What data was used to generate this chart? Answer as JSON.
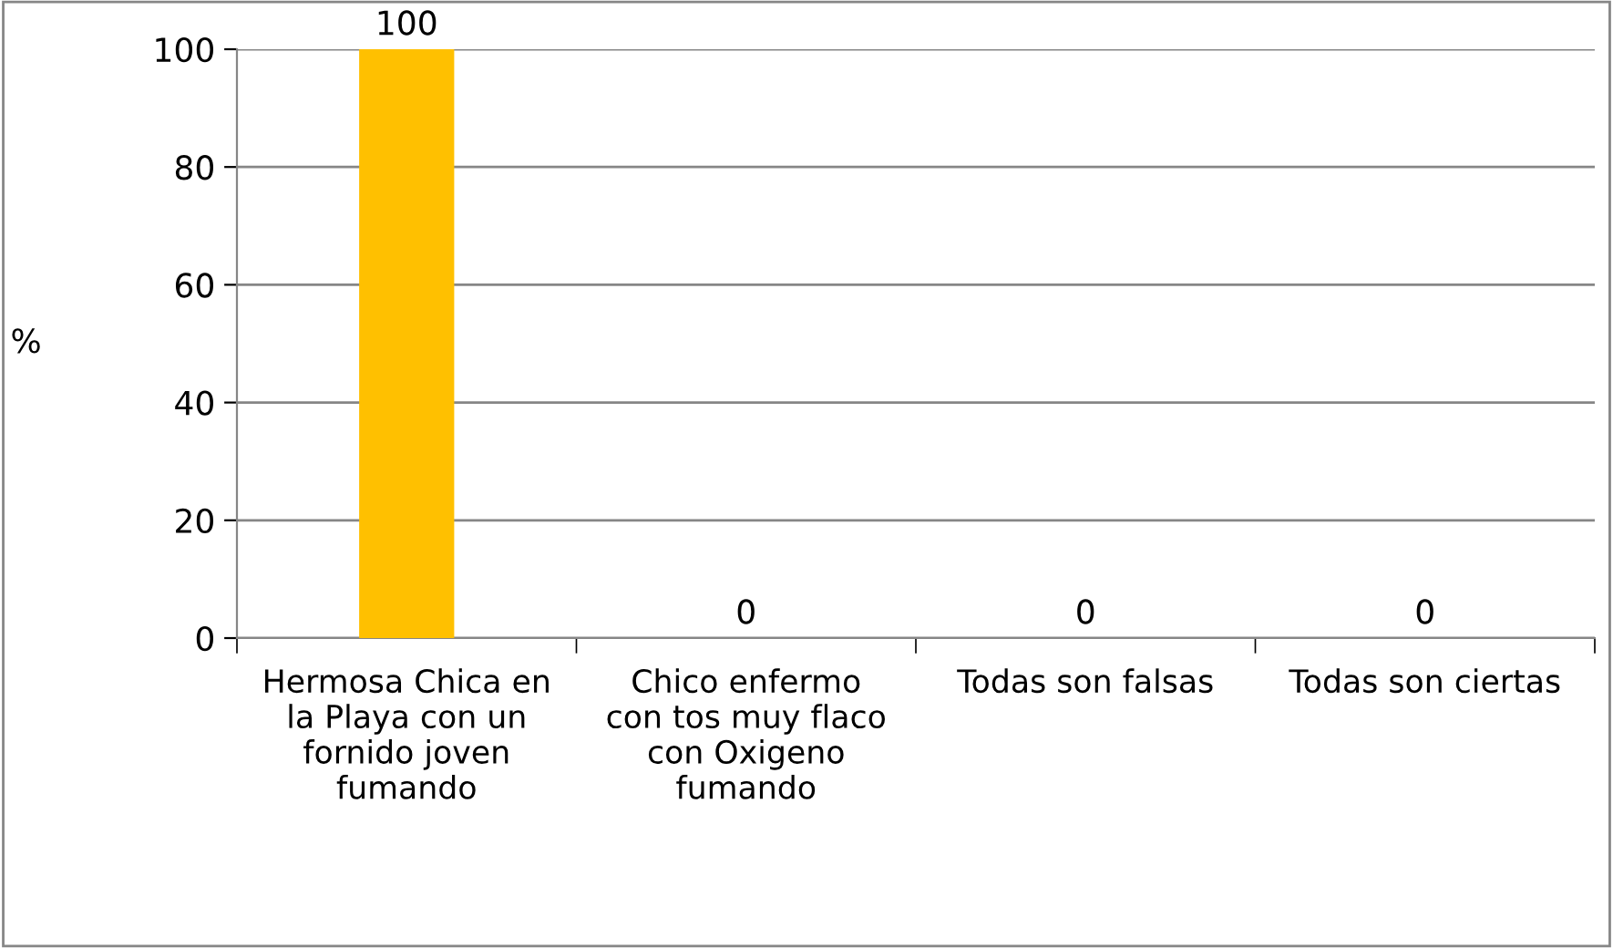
{
  "chart_data": {
    "type": "bar",
    "ylabel": "%",
    "categories": [
      "Hermosa Chica en\nla Playa con un\nfornido joven\nfumando",
      "Chico enfermo\ncon tos muy flaco\ncon Oxigeno\nfumando",
      "Todas son falsas",
      "Todas son ciertas"
    ],
    "values": [
      100,
      0,
      0,
      0
    ],
    "color": "#ffc000",
    "ylim": [
      0,
      100
    ],
    "yticks": [
      0,
      20,
      40,
      60,
      80,
      100
    ],
    "grid": "y",
    "data_labels": true
  }
}
